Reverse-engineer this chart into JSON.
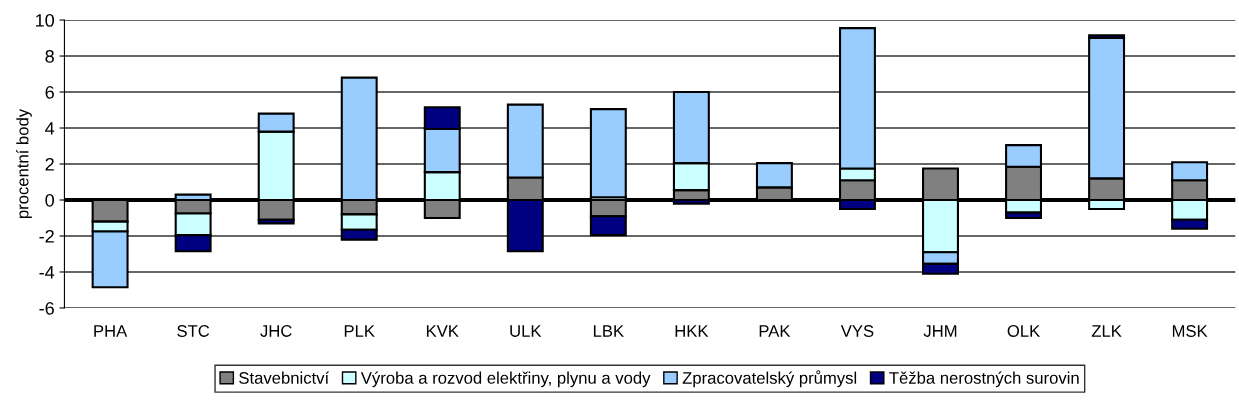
{
  "chart_data": {
    "type": "bar",
    "stacked": true,
    "ylabel": "procentní body",
    "categories": [
      "PHA",
      "STC",
      "JHC",
      "PLK",
      "KVK",
      "ULK",
      "LBK",
      "HKK",
      "PAK",
      "VYS",
      "JHM",
      "OLK",
      "ZLK",
      "MSK"
    ],
    "series": [
      {
        "name": "Stavebnictví",
        "color": "#808080",
        "values": [
          -1.2,
          -0.75,
          -1.1,
          -0.8,
          -1.0,
          1.25,
          -0.9,
          0.55,
          0.7,
          1.1,
          1.75,
          1.85,
          1.2,
          1.1
        ]
      },
      {
        "name": "Výroba a rozvod elektřiny, plynu a vody",
        "color": "#ccffff",
        "values": [
          -0.55,
          -1.2,
          3.8,
          -0.85,
          1.55,
          null,
          0.15,
          1.5,
          null,
          0.65,
          -2.9,
          -0.7,
          -0.5,
          -1.1
        ]
      },
      {
        "name": "Zpracovatelský průmysl",
        "color": "#99ccff",
        "values": [
          -3.1,
          0.3,
          1.0,
          6.8,
          2.4,
          4.05,
          4.9,
          3.95,
          1.35,
          7.8,
          -0.65,
          1.2,
          7.8,
          1.0
        ]
      },
      {
        "name": "Těžba nerostných surovin",
        "color": "#000080",
        "values": [
          null,
          -0.9,
          -0.2,
          -0.55,
          1.2,
          -2.85,
          -1.05,
          -0.2,
          null,
          -0.5,
          -0.55,
          -0.3,
          0.15,
          -0.5
        ]
      }
    ],
    "ylim": [
      -6,
      10
    ],
    "yticks": [
      -6,
      -4,
      -2,
      0,
      2,
      4,
      6,
      8,
      10
    ],
    "grid": "y",
    "legend": "bottom"
  }
}
